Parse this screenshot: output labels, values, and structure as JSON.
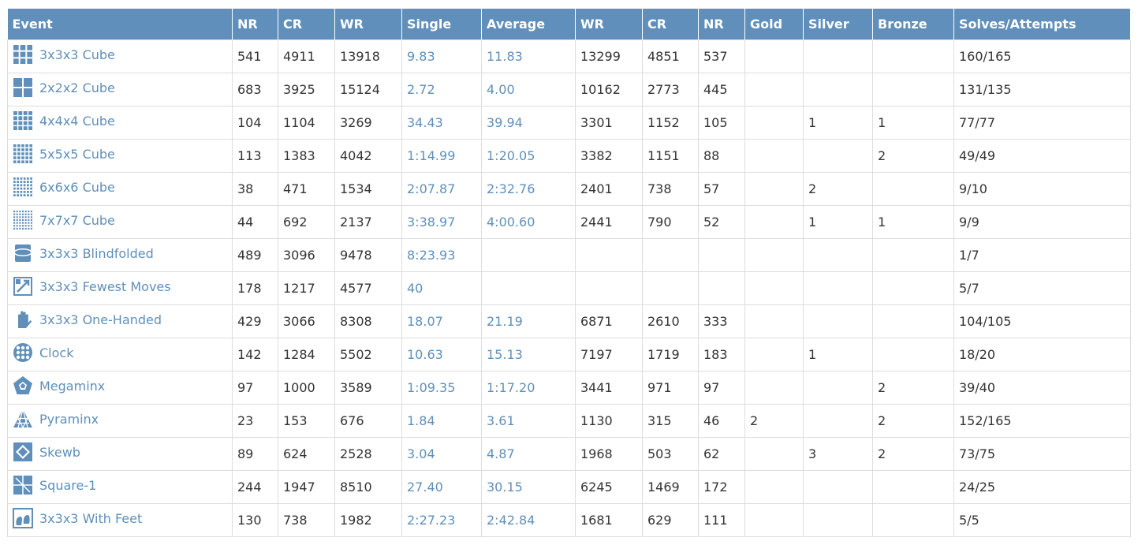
{
  "accent": "#5f8fba",
  "columns": [
    "Event",
    "NR",
    "CR",
    "WR",
    "Single",
    "Average",
    "WR",
    "CR",
    "NR",
    "Gold",
    "Silver",
    "Bronze",
    "Solves/Attempts"
  ],
  "rows": [
    {
      "event": "3x3x3 Cube",
      "icon": "cube-3x3-icon",
      "single_nr": "541",
      "single_cr": "4911",
      "single_wr": "13918",
      "single": "9.83",
      "average": "11.83",
      "avg_wr": "13299",
      "avg_cr": "4851",
      "avg_nr": "537",
      "gold": "",
      "silver": "",
      "bronze": "",
      "solves": "160/165"
    },
    {
      "event": "2x2x2 Cube",
      "icon": "cube-2x2-icon",
      "single_nr": "683",
      "single_cr": "3925",
      "single_wr": "15124",
      "single": "2.72",
      "average": "4.00",
      "avg_wr": "10162",
      "avg_cr": "2773",
      "avg_nr": "445",
      "gold": "",
      "silver": "",
      "bronze": "",
      "solves": "131/135"
    },
    {
      "event": "4x4x4 Cube",
      "icon": "cube-4x4-icon",
      "single_nr": "104",
      "single_cr": "1104",
      "single_wr": "3269",
      "single": "34.43",
      "average": "39.94",
      "avg_wr": "3301",
      "avg_cr": "1152",
      "avg_nr": "105",
      "gold": "",
      "silver": "1",
      "bronze": "1",
      "solves": "77/77"
    },
    {
      "event": "5x5x5 Cube",
      "icon": "cube-5x5-icon",
      "single_nr": "113",
      "single_cr": "1383",
      "single_wr": "4042",
      "single": "1:14.99",
      "average": "1:20.05",
      "avg_wr": "3382",
      "avg_cr": "1151",
      "avg_nr": "88",
      "gold": "",
      "silver": "",
      "bronze": "2",
      "solves": "49/49"
    },
    {
      "event": "6x6x6 Cube",
      "icon": "cube-6x6-icon",
      "single_nr": "38",
      "single_cr": "471",
      "single_wr": "1534",
      "single": "2:07.87",
      "average": "2:32.76",
      "avg_wr": "2401",
      "avg_cr": "738",
      "avg_nr": "57",
      "gold": "",
      "silver": "2",
      "bronze": "",
      "solves": "9/10"
    },
    {
      "event": "7x7x7 Cube",
      "icon": "cube-7x7-icon",
      "single_nr": "44",
      "single_cr": "692",
      "single_wr": "2137",
      "single": "3:38.97",
      "average": "4:00.60",
      "avg_wr": "2441",
      "avg_cr": "790",
      "avg_nr": "52",
      "gold": "",
      "silver": "1",
      "bronze": "1",
      "solves": "9/9"
    },
    {
      "event": "3x3x3 Blindfolded",
      "icon": "blindfold-icon",
      "single_nr": "489",
      "single_cr": "3096",
      "single_wr": "9478",
      "single": "8:23.93",
      "average": "",
      "avg_wr": "",
      "avg_cr": "",
      "avg_nr": "",
      "gold": "",
      "silver": "",
      "bronze": "",
      "solves": "1/7"
    },
    {
      "event": "3x3x3 Fewest Moves",
      "icon": "fewest-moves-icon",
      "single_nr": "178",
      "single_cr": "1217",
      "single_wr": "4577",
      "single": "40",
      "average": "",
      "avg_wr": "",
      "avg_cr": "",
      "avg_nr": "",
      "gold": "",
      "silver": "",
      "bronze": "",
      "solves": "5/7"
    },
    {
      "event": "3x3x3 One-Handed",
      "icon": "hand-icon",
      "single_nr": "429",
      "single_cr": "3066",
      "single_wr": "8308",
      "single": "18.07",
      "average": "21.19",
      "avg_wr": "6871",
      "avg_cr": "2610",
      "avg_nr": "333",
      "gold": "",
      "silver": "",
      "bronze": "",
      "solves": "104/105"
    },
    {
      "event": "Clock",
      "icon": "clock-icon",
      "single_nr": "142",
      "single_cr": "1284",
      "single_wr": "5502",
      "single": "10.63",
      "average": "15.13",
      "avg_wr": "7197",
      "avg_cr": "1719",
      "avg_nr": "183",
      "gold": "",
      "silver": "1",
      "bronze": "",
      "solves": "18/20"
    },
    {
      "event": "Megaminx",
      "icon": "megaminx-icon",
      "single_nr": "97",
      "single_cr": "1000",
      "single_wr": "3589",
      "single": "1:09.35",
      "average": "1:17.20",
      "avg_wr": "3441",
      "avg_cr": "971",
      "avg_nr": "97",
      "gold": "",
      "silver": "",
      "bronze": "2",
      "solves": "39/40"
    },
    {
      "event": "Pyraminx",
      "icon": "pyraminx-icon",
      "single_nr": "23",
      "single_cr": "153",
      "single_wr": "676",
      "single": "1.84",
      "average": "3.61",
      "avg_wr": "1130",
      "avg_cr": "315",
      "avg_nr": "46",
      "gold": "2",
      "silver": "",
      "bronze": "2",
      "solves": "152/165"
    },
    {
      "event": "Skewb",
      "icon": "skewb-icon",
      "single_nr": "89",
      "single_cr": "624",
      "single_wr": "2528",
      "single": "3.04",
      "average": "4.87",
      "avg_wr": "1968",
      "avg_cr": "503",
      "avg_nr": "62",
      "gold": "",
      "silver": "3",
      "bronze": "2",
      "solves": "73/75"
    },
    {
      "event": "Square-1",
      "icon": "square-1-icon",
      "single_nr": "244",
      "single_cr": "1947",
      "single_wr": "8510",
      "single": "27.40",
      "average": "30.15",
      "avg_wr": "6245",
      "avg_cr": "1469",
      "avg_nr": "172",
      "gold": "",
      "silver": "",
      "bronze": "",
      "solves": "24/25"
    },
    {
      "event": "3x3x3 With Feet",
      "icon": "feet-icon",
      "single_nr": "130",
      "single_cr": "738",
      "single_wr": "1982",
      "single": "2:27.23",
      "average": "2:42.84",
      "avg_wr": "1681",
      "avg_cr": "629",
      "avg_nr": "111",
      "gold": "",
      "silver": "",
      "bronze": "",
      "solves": "5/5"
    }
  ]
}
